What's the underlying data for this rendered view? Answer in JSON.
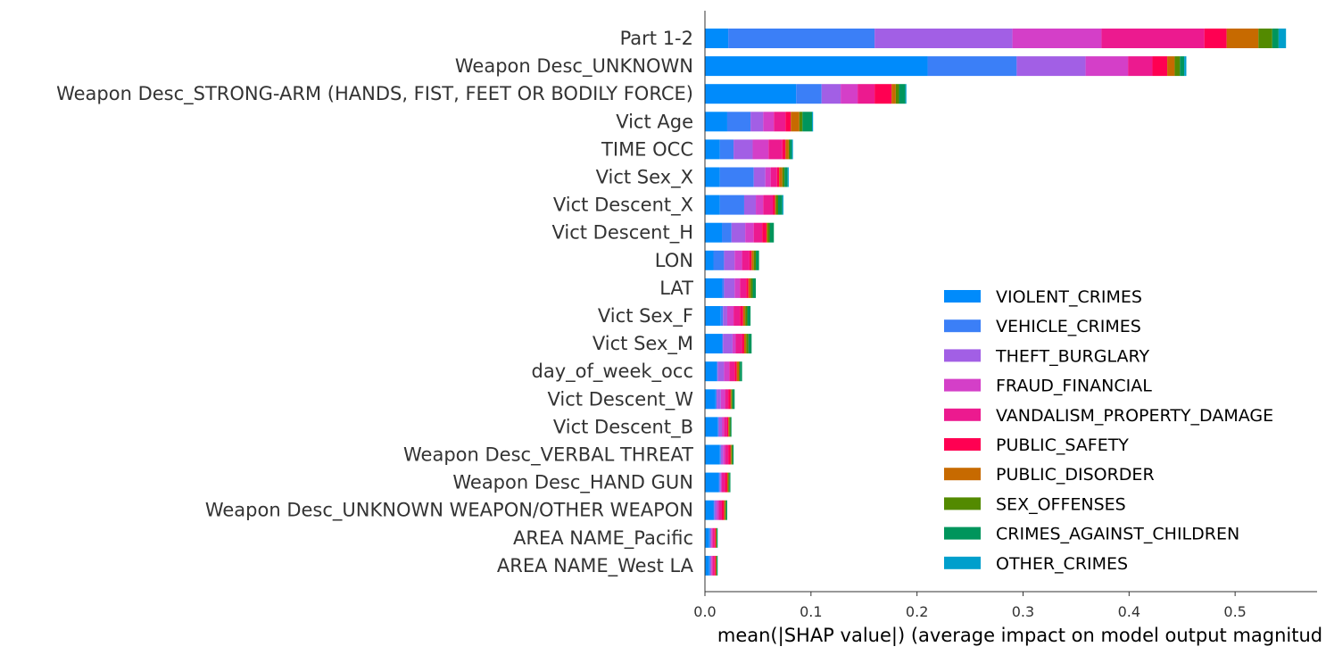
{
  "chart_data": {
    "type": "bar",
    "orientation": "horizontal",
    "stacked": true,
    "title": "",
    "xlabel": "mean(|SHAP value|) (average impact on model output magnitud",
    "ylabel": "",
    "xlim": [
      0,
      0.5773
    ],
    "xticks": [
      "0.0",
      "0.1",
      "0.2",
      "0.3",
      "0.4",
      "0.5"
    ],
    "grid": false,
    "legend_position": "lower-right",
    "categories": [
      "Part 1-2",
      "Weapon Desc_UNKNOWN",
      "Weapon Desc_STRONG-ARM (HANDS, FIST, FEET OR BODILY FORCE)",
      "Vict Age",
      "TIME OCC",
      "Vict Sex_X",
      "Vict Descent_X",
      "Vict Descent_H",
      "LON",
      "LAT",
      "Vict Sex_F",
      "Vict Sex_M",
      "day_of_week_occ",
      "Vict Descent_W",
      "Vict Descent_B",
      "Weapon Desc_VERBAL THREAT",
      "Weapon Desc_HAND GUN",
      "Weapon Desc_UNKNOWN WEAPON/OTHER WEAPON",
      "AREA NAME_Pacific",
      "AREA NAME_West LA"
    ],
    "series": [
      {
        "name": "VIOLENT_CRIMES",
        "color": "#008bfb",
        "values": [
          0.022,
          0.21,
          0.086,
          0.021,
          0.014,
          0.014,
          0.014,
          0.016,
          0.008,
          0.016,
          0.015,
          0.016,
          0.011,
          0.01,
          0.012,
          0.014,
          0.013,
          0.008,
          0.004,
          0.004
        ]
      },
      {
        "name": "VEHICLE_CRIMES",
        "color": "#3b7ff7",
        "values": [
          0.138,
          0.084,
          0.024,
          0.022,
          0.013,
          0.032,
          0.023,
          0.009,
          0.01,
          0.002,
          0.002,
          0.001,
          0.001,
          0.001,
          0.001,
          0.001,
          0.001,
          0.001,
          0.001,
          0.001
        ]
      },
      {
        "name": "THEFT_BURGLARY",
        "color": "#a25fe5",
        "values": [
          0.13,
          0.065,
          0.018,
          0.012,
          0.018,
          0.011,
          0.011,
          0.013,
          0.01,
          0.01,
          0.004,
          0.009,
          0.006,
          0.004,
          0.003,
          0.002,
          0.001,
          0.002,
          0.001,
          0.001
        ]
      },
      {
        "name": "FRAUD_FINANCIAL",
        "color": "#d43fc8",
        "values": [
          0.084,
          0.04,
          0.016,
          0.01,
          0.015,
          0.005,
          0.007,
          0.008,
          0.007,
          0.005,
          0.006,
          0.003,
          0.005,
          0.004,
          0.002,
          0.002,
          0.001,
          0.002,
          0.001,
          0.001
        ]
      },
      {
        "name": "VANDALISM_PROPERTY_DAMAGE",
        "color": "#ec1a8f",
        "values": [
          0.097,
          0.023,
          0.016,
          0.011,
          0.013,
          0.006,
          0.009,
          0.008,
          0.007,
          0.006,
          0.006,
          0.006,
          0.005,
          0.003,
          0.003,
          0.003,
          0.003,
          0.003,
          0.002,
          0.002
        ]
      },
      {
        "name": "PUBLIC_SAFETY",
        "color": "#ff0052",
        "values": [
          0.021,
          0.014,
          0.016,
          0.005,
          0.003,
          0.002,
          0.002,
          0.004,
          0.002,
          0.002,
          0.003,
          0.002,
          0.002,
          0.002,
          0.001,
          0.002,
          0.002,
          0.002,
          0.001,
          0.001
        ]
      },
      {
        "name": "PUBLIC_DISORDER",
        "color": "#c76a00",
        "values": [
          0.03,
          0.007,
          0.004,
          0.008,
          0.003,
          0.003,
          0.001,
          0.001,
          0.002,
          0.002,
          0.002,
          0.002,
          0.002,
          0.001,
          0.001,
          0.001,
          0.001,
          0.001,
          0.001,
          0.001
        ]
      },
      {
        "name": "SEX_OFFENSES",
        "color": "#538a00",
        "values": [
          0.013,
          0.005,
          0.003,
          0.003,
          0.001,
          0.002,
          0.002,
          0.002,
          0.002,
          0.002,
          0.002,
          0.002,
          0.001,
          0.001,
          0.001,
          0.001,
          0.001,
          0.001,
          0.0,
          0.0
        ]
      },
      {
        "name": "CRIMES_AGAINST_CHILDREN",
        "color": "#00955c",
        "values": [
          0.006,
          0.004,
          0.006,
          0.009,
          0.002,
          0.003,
          0.004,
          0.004,
          0.003,
          0.003,
          0.003,
          0.003,
          0.002,
          0.002,
          0.001,
          0.001,
          0.001,
          0.001,
          0.001,
          0.001
        ]
      },
      {
        "name": "OTHER_CRIMES",
        "color": "#009fcc",
        "values": [
          0.007,
          0.002,
          0.001,
          0.001,
          0.001,
          0.001,
          0.001,
          0.0,
          0.0,
          0.0,
          0.0,
          0.0,
          0.0,
          0.0,
          0.0,
          0.0,
          0.0,
          0.0,
          0.0,
          0.0
        ]
      }
    ]
  }
}
